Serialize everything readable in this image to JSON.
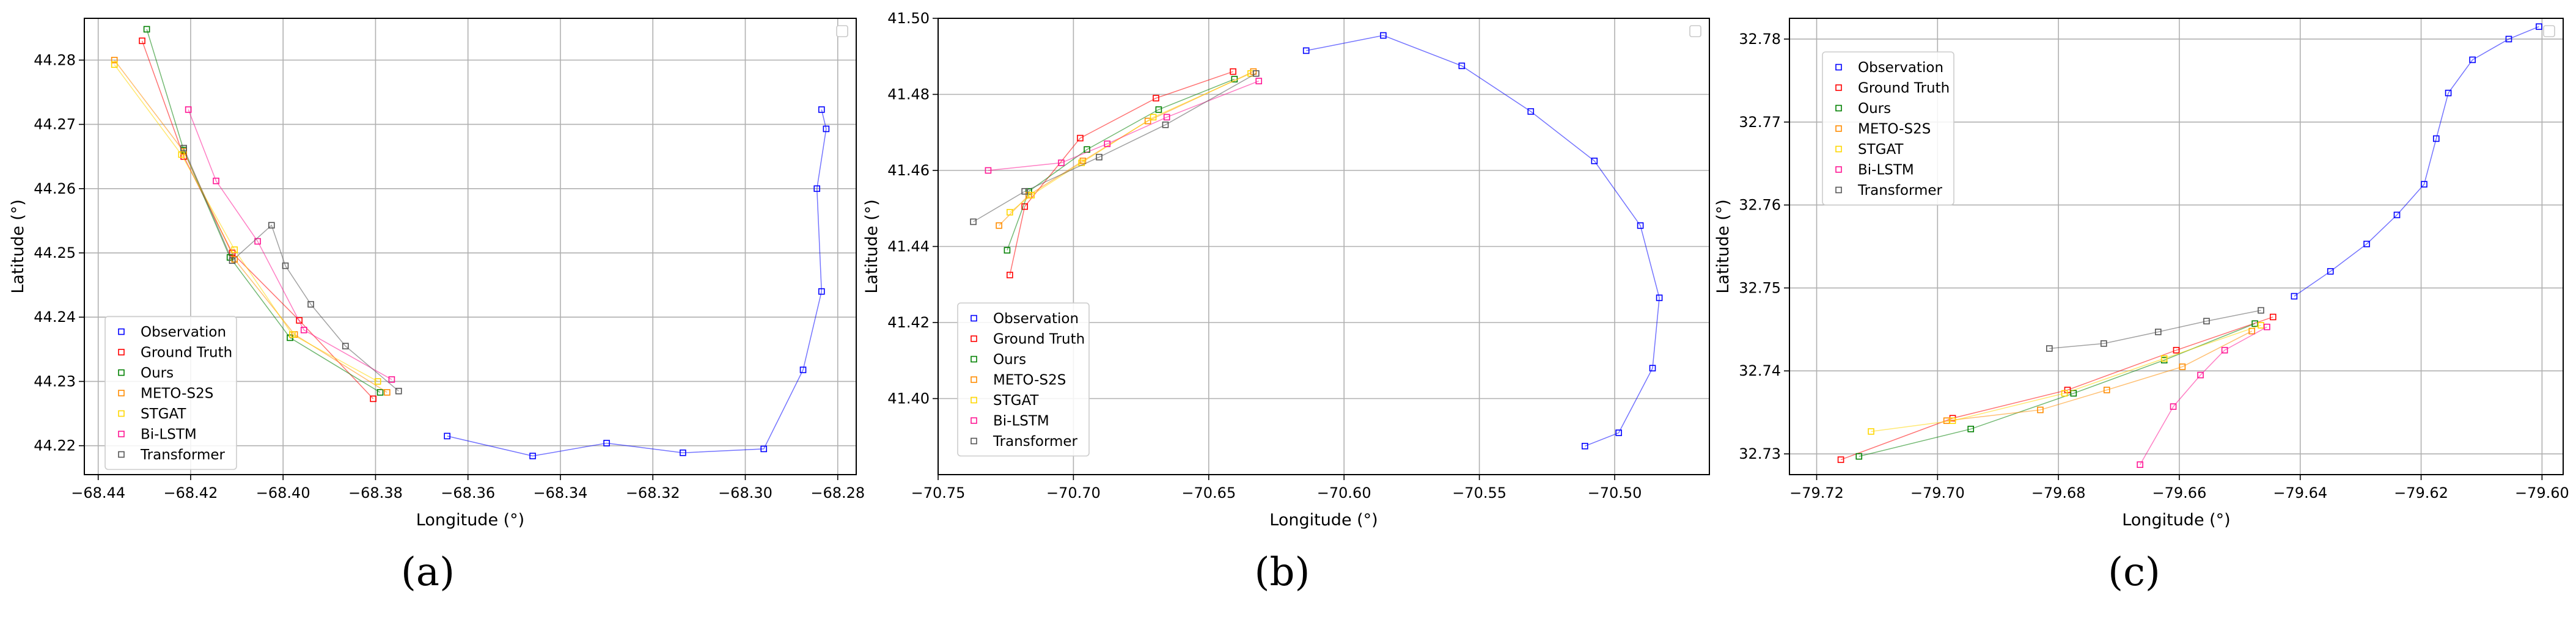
{
  "series_styles": [
    {
      "name": "Observation",
      "color": "#0000ff"
    },
    {
      "name": "Ground Truth",
      "color": "#ff0000"
    },
    {
      "name": "Ours",
      "color": "#008000"
    },
    {
      "name": "METO-S2S",
      "color": "#ff8c00"
    },
    {
      "name": "STGAT",
      "color": "#ffd700"
    },
    {
      "name": "Bi-LSTM",
      "color": "#ff1493"
    },
    {
      "name": "Transformer",
      "color": "#555555"
    }
  ],
  "captions": [
    "(a)",
    "(b)",
    "(c)"
  ],
  "chart_data": [
    {
      "type": "line",
      "panel": "(a)",
      "xlabel": "Longitude (°)",
      "ylabel": "Latitude (°)",
      "xlim": [
        -68.443,
        -68.276
      ],
      "ylim": [
        44.2155,
        44.2865
      ],
      "xticks": [
        -68.44,
        -68.42,
        -68.4,
        -68.38,
        -68.36,
        -68.34,
        -68.32,
        -68.3,
        -68.28
      ],
      "xtick_labels": [
        "−68.44",
        "−68.42",
        "−68.40",
        "−68.38",
        "−68.36",
        "−68.34",
        "−68.32",
        "−68.30",
        "−68.28"
      ],
      "yticks": [
        44.22,
        44.23,
        44.24,
        44.25,
        44.26,
        44.27,
        44.28
      ],
      "ytick_labels": [
        "44.22",
        "44.23",
        "44.24",
        "44.25",
        "44.26",
        "44.27",
        "44.28"
      ],
      "grid": true,
      "legend_position": "lower-left",
      "series": [
        {
          "name": "Observation",
          "x": [
            -68.3645,
            -68.346,
            -68.33,
            -68.3135,
            -68.296,
            -68.2875,
            -68.2835,
            -68.2845,
            -68.2825,
            -68.2835
          ],
          "y": [
            44.2215,
            44.2184,
            44.2204,
            44.2189,
            44.2195,
            44.2318,
            44.244,
            44.26,
            44.2693,
            44.2723
          ]
        },
        {
          "name": "Ground Truth",
          "x": [
            -68.4305,
            -68.4215,
            -68.411,
            -68.3965,
            -68.3805
          ],
          "y": [
            44.283,
            44.265,
            44.25,
            44.2395,
            44.2273
          ]
        },
        {
          "name": "Ours",
          "x": [
            -68.4295,
            -68.4215,
            -68.4115,
            -68.3985,
            -68.379
          ],
          "y": [
            44.2848,
            44.266,
            44.2493,
            44.2368,
            44.2283
          ]
        },
        {
          "name": "METO-S2S",
          "x": [
            -68.4365,
            -68.4215,
            -68.4105,
            -68.3975,
            -68.3775
          ],
          "y": [
            44.28,
            44.2658,
            44.249,
            44.2373,
            44.2283
          ]
        },
        {
          "name": "STGAT",
          "x": [
            -68.4365,
            -68.422,
            -68.4105,
            -68.398,
            -68.3795
          ],
          "y": [
            44.2793,
            44.2653,
            44.2505,
            44.2373,
            44.23
          ]
        },
        {
          "name": "Bi-LSTM",
          "x": [
            -68.4205,
            -68.4145,
            -68.4055,
            -68.3955,
            -68.3765
          ],
          "y": [
            44.2723,
            44.2612,
            44.2518,
            44.238,
            44.2303
          ]
        },
        {
          "name": "Transformer",
          "x": [
            -68.4215,
            -68.411,
            -68.4025,
            -68.3995,
            -68.394,
            -68.3865,
            -68.375
          ],
          "y": [
            44.2663,
            44.2488,
            44.2543,
            44.248,
            44.242,
            44.2355,
            44.2285
          ]
        }
      ]
    },
    {
      "type": "line",
      "panel": "(b)",
      "xlabel": "Longitude (°)",
      "ylabel": "Latitude (°)",
      "xlim": [
        -70.75,
        -70.465
      ],
      "ylim": [
        41.38,
        41.5
      ],
      "xticks": [
        -70.75,
        -70.7,
        -70.65,
        -70.6,
        -70.55,
        -70.5
      ],
      "xtick_labels": [
        "−70.75",
        "−70.70",
        "−70.65",
        "−70.60",
        "−70.55",
        "−70.50"
      ],
      "yticks": [
        41.4,
        41.42,
        41.44,
        41.46,
        41.48,
        41.5
      ],
      "ytick_labels": [
        "41.40",
        "41.42",
        "41.44",
        "41.46",
        "41.48",
        "41.50"
      ],
      "grid": true,
      "legend_position": "lower-left",
      "series": [
        {
          "name": "Observation",
          "x": [
            -70.614,
            -70.5855,
            -70.5565,
            -70.531,
            -70.5075,
            -70.4905,
            -70.4835,
            -70.486,
            -70.4985,
            -70.511
          ],
          "y": [
            41.4915,
            41.4955,
            41.4875,
            41.4755,
            41.4625,
            41.4455,
            41.4265,
            41.408,
            41.391,
            41.3875
          ]
        },
        {
          "name": "Ground Truth",
          "x": [
            -70.7235,
            -70.718,
            -70.6975,
            -70.6695,
            -70.641
          ],
          "y": [
            41.4325,
            41.4505,
            41.4685,
            41.479,
            41.486
          ]
        },
        {
          "name": "Ours",
          "x": [
            -70.7245,
            -70.7165,
            -70.695,
            -70.6685,
            -70.6405
          ],
          "y": [
            41.439,
            41.4545,
            41.4655,
            41.476,
            41.484
          ]
        },
        {
          "name": "METO-S2S",
          "x": [
            -70.7275,
            -70.7165,
            -70.6965,
            -70.6725,
            -70.6335
          ],
          "y": [
            41.4455,
            41.4535,
            41.4625,
            41.473,
            41.486
          ]
        },
        {
          "name": "STGAT",
          "x": [
            -70.7235,
            -70.7155,
            -70.697,
            -70.6705,
            -70.6345
          ],
          "y": [
            41.449,
            41.4535,
            41.462,
            41.474,
            41.4855
          ]
        },
        {
          "name": "Bi-LSTM",
          "x": [
            -70.7315,
            -70.7045,
            -70.6875,
            -70.6655,
            -70.6315
          ],
          "y": [
            41.46,
            41.462,
            41.467,
            41.474,
            41.4835
          ]
        },
        {
          "name": "Transformer",
          "x": [
            -70.737,
            -70.718,
            -70.6905,
            -70.666,
            -70.6325
          ],
          "y": [
            41.4465,
            41.4545,
            41.4635,
            41.472,
            41.4855
          ]
        }
      ]
    },
    {
      "type": "line",
      "panel": "(c)",
      "xlabel": "Longitude (°)",
      "ylabel": "Latitude (°)",
      "xlim": [
        -79.7245,
        -79.5965
      ],
      "ylim": [
        32.7275,
        32.7825
      ],
      "xticks": [
        -79.72,
        -79.7,
        -79.68,
        -79.66,
        -79.64,
        -79.62,
        -79.6
      ],
      "xtick_labels": [
        "−79.72",
        "−79.70",
        "−79.68",
        "−79.66",
        "−79.64",
        "−79.62",
        "−79.60"
      ],
      "yticks": [
        32.73,
        32.74,
        32.75,
        32.76,
        32.77,
        32.78
      ],
      "ytick_labels": [
        "32.73",
        "32.74",
        "32.75",
        "32.76",
        "32.77",
        "32.78"
      ],
      "grid": true,
      "legend_position": "upper-left",
      "series": [
        {
          "name": "Observation",
          "x": [
            -79.641,
            -79.635,
            -79.629,
            -79.624,
            -79.6195,
            -79.6175,
            -79.6155,
            -79.6115,
            -79.6055,
            -79.6005
          ],
          "y": [
            32.749,
            32.752,
            32.7553,
            32.7588,
            32.7625,
            32.768,
            32.7735,
            32.7775,
            32.78,
            32.7815
          ]
        },
        {
          "name": "Ground Truth",
          "x": [
            -79.716,
            -79.6975,
            -79.6785,
            -79.6605,
            -79.6445
          ],
          "y": [
            32.7293,
            32.7343,
            32.7377,
            32.7425,
            32.7465
          ]
        },
        {
          "name": "Ours",
          "x": [
            -79.713,
            -79.6945,
            -79.6775,
            -79.6625,
            -79.6475
          ],
          "y": [
            32.7297,
            32.733,
            32.7373,
            32.7413,
            32.7457
          ]
        },
        {
          "name": "METO-S2S",
          "x": [
            -79.6985,
            -79.683,
            -79.672,
            -79.6595,
            -79.648
          ],
          "y": [
            32.734,
            32.7353,
            32.7377,
            32.7405,
            32.7448
          ]
        },
        {
          "name": "STGAT",
          "x": [
            -79.711,
            -79.6975,
            -79.679,
            -79.6625,
            -79.6465
          ],
          "y": [
            32.7327,
            32.734,
            32.7373,
            32.7415,
            32.7455
          ]
        },
        {
          "name": "Bi-LSTM",
          "x": [
            -79.6665,
            -79.661,
            -79.6565,
            -79.6525,
            -79.6455
          ],
          "y": [
            32.7287,
            32.7357,
            32.7395,
            32.7425,
            32.7453
          ]
        },
        {
          "name": "Transformer",
          "x": [
            -79.6815,
            -79.6725,
            -79.6635,
            -79.6555,
            -79.6465
          ],
          "y": [
            32.7427,
            32.7433,
            32.7447,
            32.746,
            32.7473
          ]
        }
      ]
    }
  ]
}
